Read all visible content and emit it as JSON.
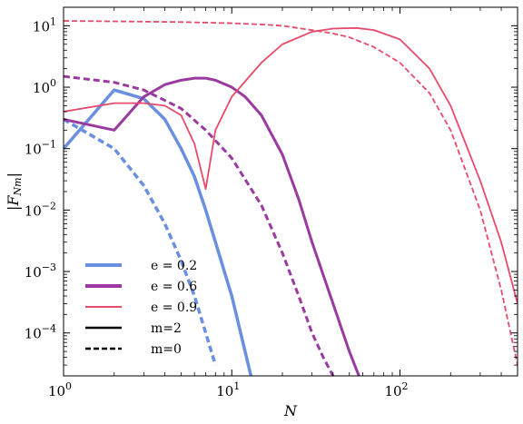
{
  "chart_data": {
    "type": "line",
    "xlabel": "N",
    "ylabel": "|F_{Nm}|",
    "xscale": "log",
    "yscale": "log",
    "xlim": [
      1,
      500
    ],
    "ylim": [
      2e-05,
      20
    ],
    "grid": false,
    "legend_position": "bottom-left",
    "x_ticks": [
      {
        "value": 1,
        "base": "10",
        "exp": "0"
      },
      {
        "value": 10,
        "base": "10",
        "exp": "1"
      },
      {
        "value": 100,
        "base": "10",
        "exp": "2"
      }
    ],
    "y_ticks": [
      {
        "value": 0.0001,
        "base": "10",
        "exp": "−4"
      },
      {
        "value": 0.001,
        "base": "10",
        "exp": "−3"
      },
      {
        "value": 0.01,
        "base": "10",
        "exp": "−2"
      },
      {
        "value": 0.1,
        "base": "10",
        "exp": "−1"
      },
      {
        "value": 1,
        "base": "10",
        "exp": "0"
      },
      {
        "value": 10,
        "base": "10",
        "exp": "1"
      }
    ],
    "legend": [
      {
        "label": "e = 0.2",
        "color": "#6b8fe0",
        "style": "solid-thick"
      },
      {
        "label": "e = 0.6",
        "color": "#9a3aa0",
        "style": "solid-thick"
      },
      {
        "label": "e = 0.9",
        "color": "#e84a6b",
        "style": "solid-thin"
      },
      {
        "label": "m=2",
        "color": "#000000",
        "style": "solid"
      },
      {
        "label": "m=0",
        "color": "#000000",
        "style": "dashed"
      }
    ],
    "series": [
      {
        "e": "0.2",
        "m": "2",
        "color": "#6b8fe0",
        "dashed": false,
        "width": 3.5,
        "x": [
          1,
          2,
          3,
          4,
          5,
          6,
          7,
          8,
          10,
          12,
          13
        ],
        "y": [
          0.1,
          0.9,
          0.65,
          0.3,
          0.1,
          0.035,
          0.01,
          0.003,
          0.0004,
          5e-05,
          2e-05
        ]
      },
      {
        "e": "0.2",
        "m": "0",
        "color": "#6b8fe0",
        "dashed": true,
        "width": 3.5,
        "x": [
          1,
          2,
          3,
          4,
          5,
          6,
          7,
          8
        ],
        "y": [
          0.3,
          0.1,
          0.025,
          0.006,
          0.0015,
          0.0004,
          0.0001,
          3e-05
        ]
      },
      {
        "e": "0.6",
        "m": "2",
        "color": "#9a3aa0",
        "dashed": false,
        "width": 3,
        "x": [
          1,
          2,
          3,
          4,
          5,
          6,
          7,
          8,
          10,
          12,
          15,
          20,
          25,
          30,
          40,
          50,
          57
        ],
        "y": [
          0.3,
          0.2,
          0.7,
          1.1,
          1.3,
          1.4,
          1.4,
          1.3,
          1.0,
          0.7,
          0.35,
          0.08,
          0.015,
          0.003,
          0.0003,
          5e-05,
          2e-05
        ]
      },
      {
        "e": "0.6",
        "m": "0",
        "color": "#9a3aa0",
        "dashed": true,
        "width": 3,
        "x": [
          1,
          2,
          3,
          5,
          7,
          10,
          15,
          20,
          25,
          30,
          35,
          40,
          43
        ],
        "y": [
          1.5,
          1.2,
          0.9,
          0.45,
          0.2,
          0.07,
          0.012,
          0.002,
          0.0004,
          0.0001,
          4e-05,
          2e-05,
          1e-05
        ]
      },
      {
        "e": "0.9",
        "m": "2",
        "color": "#e84a6b",
        "dashed": false,
        "width": 1.8,
        "x": [
          1,
          2,
          3,
          4,
          5,
          6,
          7,
          8,
          10,
          15,
          20,
          30,
          40,
          55,
          70,
          100,
          150,
          200,
          300,
          400,
          500
        ],
        "y": [
          0.4,
          0.55,
          0.55,
          0.5,
          0.35,
          0.12,
          0.022,
          0.2,
          0.7,
          2.5,
          5,
          8,
          9,
          9.2,
          8.5,
          6,
          2,
          0.5,
          0.03,
          0.003,
          0.0003
        ]
      },
      {
        "e": "0.9",
        "m": "0",
        "color": "#e84a6b",
        "dashed": true,
        "width": 1.8,
        "x": [
          1,
          2,
          5,
          10,
          15,
          20,
          30,
          40,
          50,
          70,
          100,
          150,
          200,
          300,
          400,
          500
        ],
        "y": [
          12,
          11.8,
          11.5,
          11,
          10.5,
          10,
          8.5,
          7.5,
          6.5,
          4.5,
          2.5,
          0.8,
          0.2,
          0.01,
          0.0005,
          3e-05
        ]
      }
    ]
  }
}
